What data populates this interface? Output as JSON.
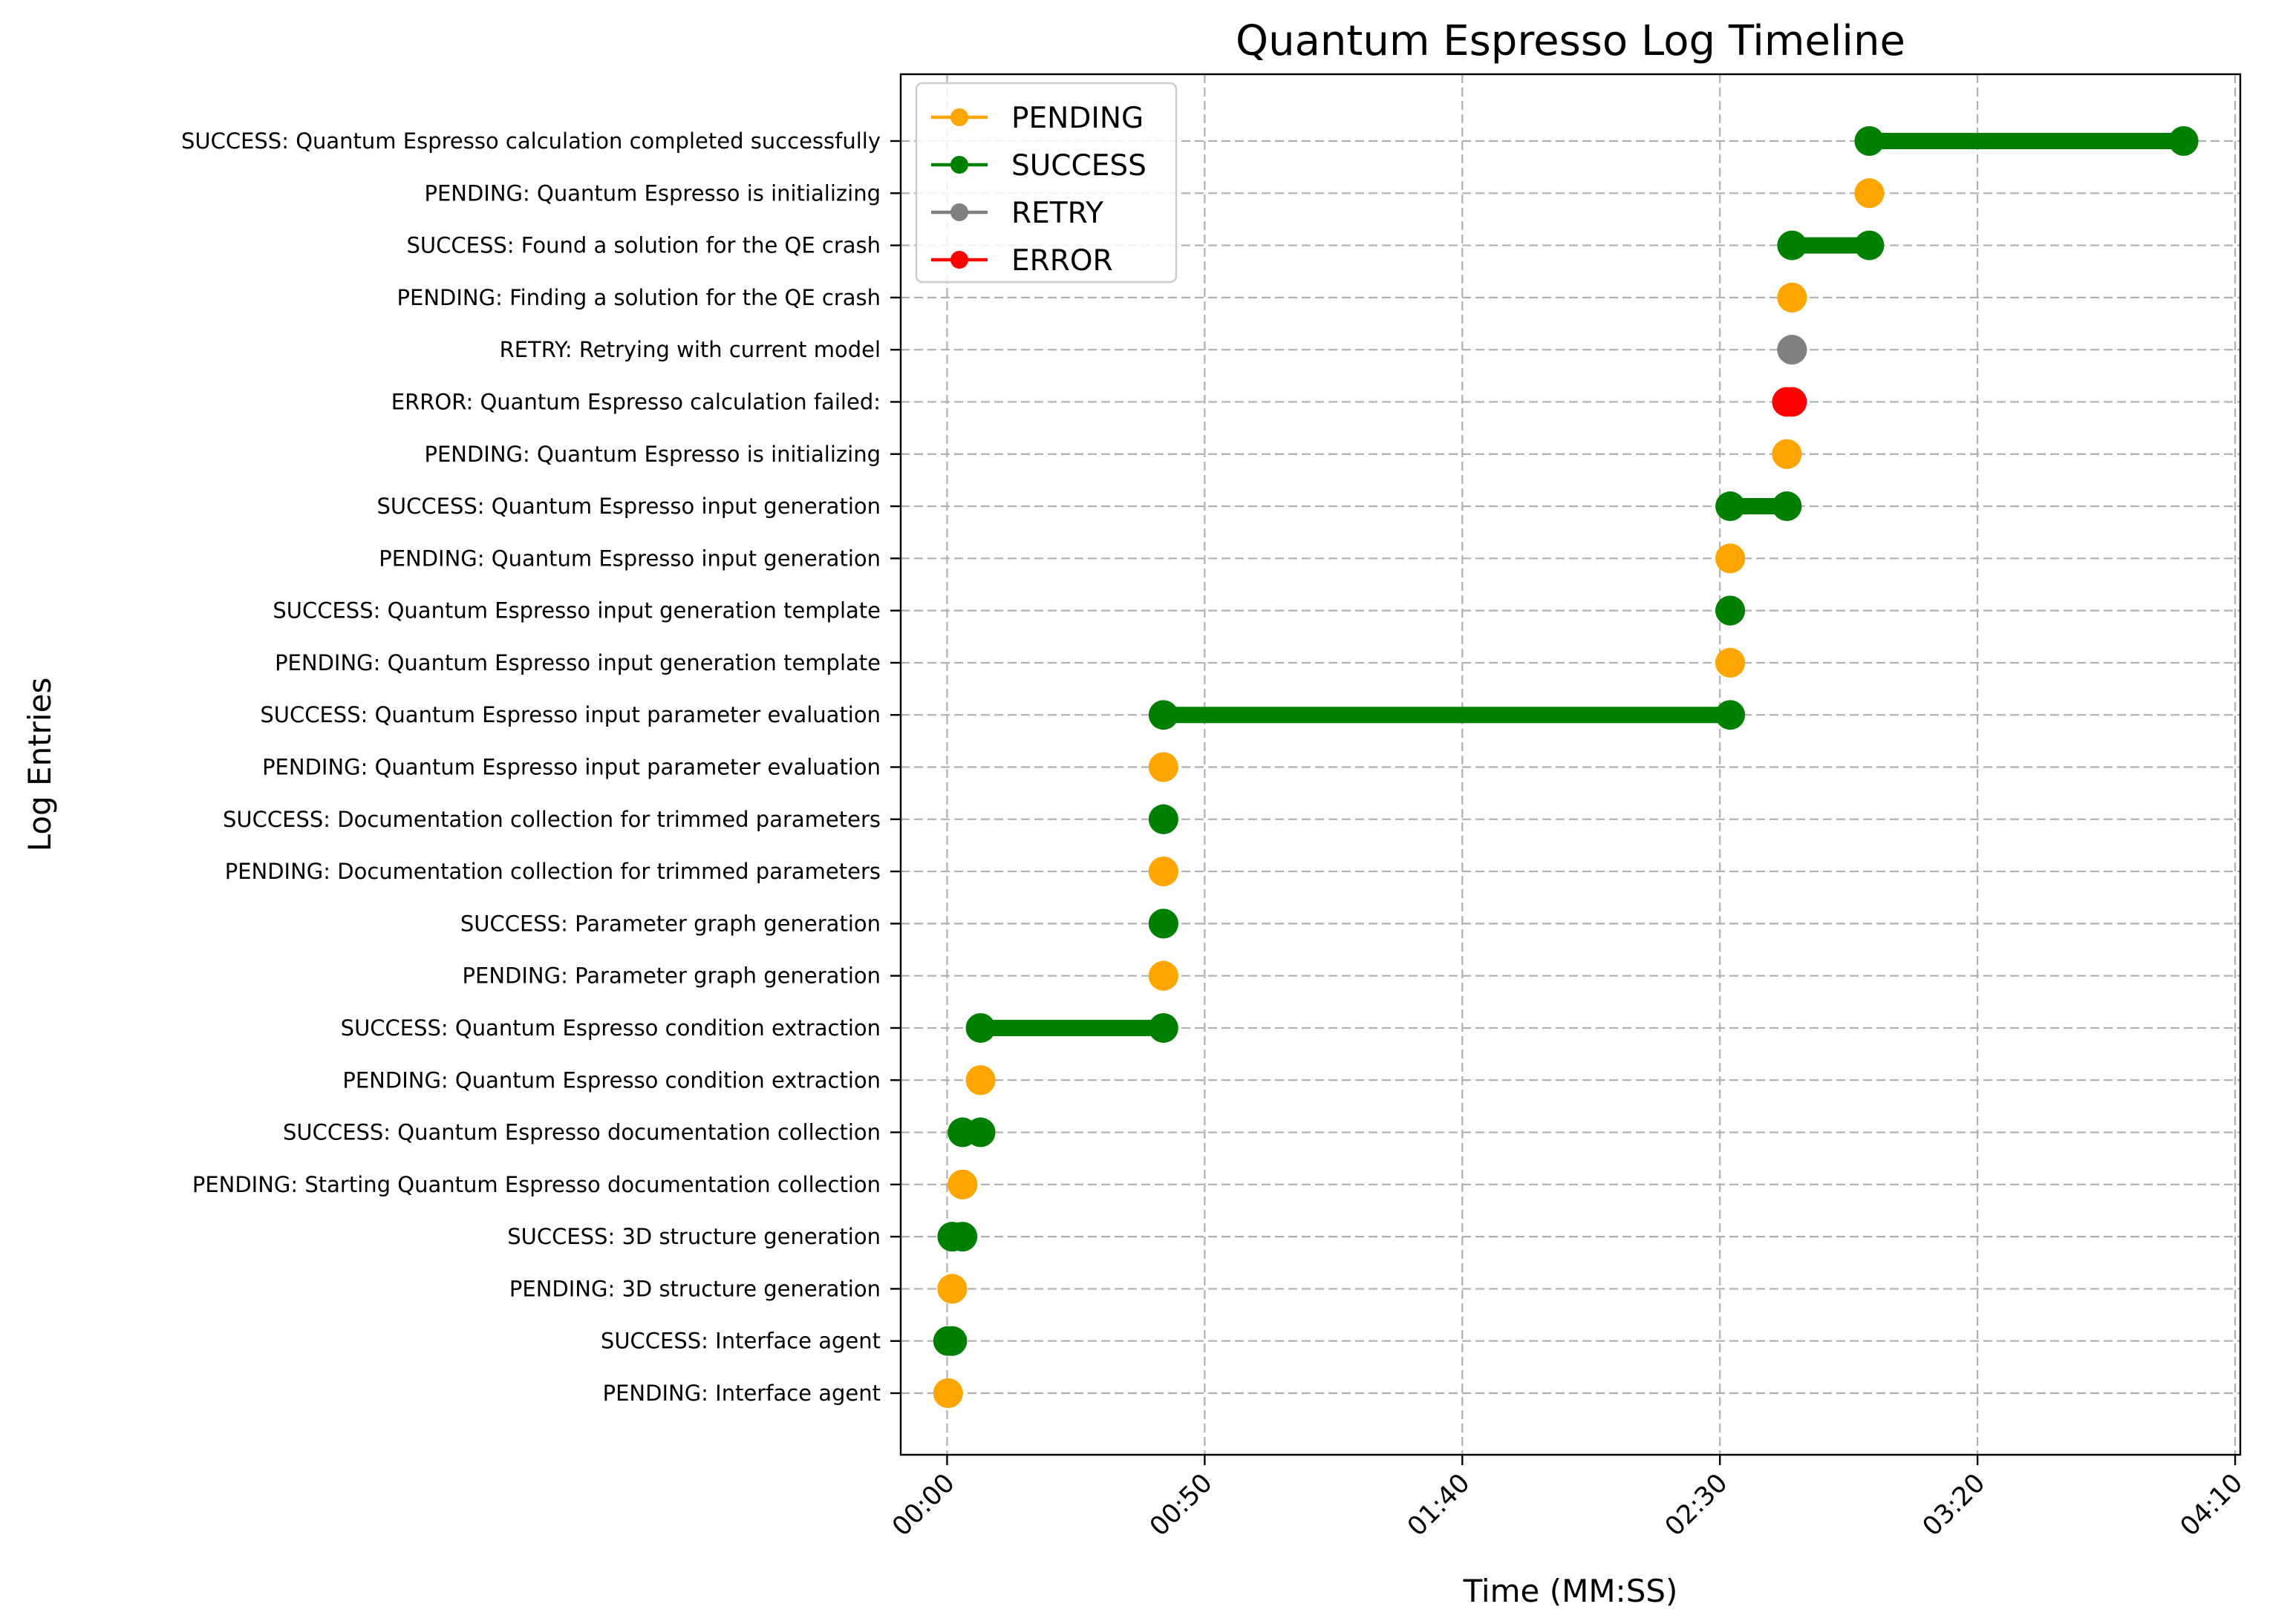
{
  "chart_data": {
    "type": "timeline",
    "title": "Quantum Espresso Log Timeline",
    "xlabel": "Time (MM:SS)",
    "ylabel": "Log Entries",
    "x_unit": "seconds",
    "xlim": [
      -9,
      251
    ],
    "x_ticks": [
      {
        "value": 0,
        "label": "00:00"
      },
      {
        "value": 50,
        "label": "00:50"
      },
      {
        "value": 100,
        "label": "01:40"
      },
      {
        "value": 150,
        "label": "02:30"
      },
      {
        "value": 200,
        "label": "03:20"
      },
      {
        "value": 250,
        "label": "04:10"
      }
    ],
    "grid": true,
    "legend_placement": "top-left",
    "status_colors": {
      "PENDING": "#ffa500",
      "SUCCESS": "#008000",
      "RETRY": "#808080",
      "ERROR": "#ff0000"
    },
    "legend": [
      "PENDING",
      "SUCCESS",
      "RETRY",
      "ERROR"
    ],
    "entries": [
      {
        "label": "PENDING: Interface agent",
        "status": "PENDING",
        "start": 0.2,
        "end": 0.2
      },
      {
        "label": "SUCCESS: Interface agent",
        "status": "SUCCESS",
        "start": 0.2,
        "end": 1.0
      },
      {
        "label": "PENDING: 3D structure generation",
        "status": "PENDING",
        "start": 1.0,
        "end": 1.0
      },
      {
        "label": "SUCCESS: 3D structure generation",
        "status": "SUCCESS",
        "start": 1.0,
        "end": 3.0
      },
      {
        "label": "PENDING: Starting Quantum Espresso documentation collection",
        "status": "PENDING",
        "start": 3.0,
        "end": 3.0
      },
      {
        "label": "SUCCESS: Quantum Espresso documentation collection",
        "status": "SUCCESS",
        "start": 3.0,
        "end": 6.5
      },
      {
        "label": "PENDING: Quantum Espresso condition extraction",
        "status": "PENDING",
        "start": 6.5,
        "end": 6.5
      },
      {
        "label": "SUCCESS: Quantum Espresso condition extraction",
        "status": "SUCCESS",
        "start": 6.5,
        "end": 42.0
      },
      {
        "label": "PENDING: Parameter graph generation",
        "status": "PENDING",
        "start": 42.0,
        "end": 42.0
      },
      {
        "label": "SUCCESS: Parameter graph generation",
        "status": "SUCCESS",
        "start": 42.0,
        "end": 42.0
      },
      {
        "label": "PENDING: Documentation collection for trimmed parameters",
        "status": "PENDING",
        "start": 42.0,
        "end": 42.0
      },
      {
        "label": "SUCCESS: Documentation collection for trimmed parameters",
        "status": "SUCCESS",
        "start": 42.0,
        "end": 42.0
      },
      {
        "label": "PENDING: Quantum Espresso input parameter evaluation",
        "status": "PENDING",
        "start": 42.0,
        "end": 42.0
      },
      {
        "label": "SUCCESS: Quantum Espresso input parameter evaluation",
        "status": "SUCCESS",
        "start": 42.0,
        "end": 152.0
      },
      {
        "label": "PENDING: Quantum Espresso input generation template",
        "status": "PENDING",
        "start": 152.0,
        "end": 152.0
      },
      {
        "label": "SUCCESS: Quantum Espresso input generation template",
        "status": "SUCCESS",
        "start": 152.0,
        "end": 152.0
      },
      {
        "label": "PENDING: Quantum Espresso input generation",
        "status": "PENDING",
        "start": 152.0,
        "end": 152.0
      },
      {
        "label": "SUCCESS: Quantum Espresso input generation",
        "status": "SUCCESS",
        "start": 152.0,
        "end": 163.0
      },
      {
        "label": "PENDING: Quantum Espresso is initializing",
        "status": "PENDING",
        "start": 163.0,
        "end": 163.0
      },
      {
        "label": "ERROR: Quantum Espresso calculation failed: ",
        "status": "ERROR",
        "start": 163.0,
        "end": 164.0
      },
      {
        "label": "RETRY: Retrying with current model",
        "status": "RETRY",
        "start": 164.0,
        "end": 164.0
      },
      {
        "label": "PENDING: Finding a solution for the QE crash",
        "status": "PENDING",
        "start": 164.0,
        "end": 164.0
      },
      {
        "label": "SUCCESS: Found a solution for the QE crash",
        "status": "SUCCESS",
        "start": 164.0,
        "end": 179.0
      },
      {
        "label": "PENDING: Quantum Espresso is initializing",
        "status": "PENDING",
        "start": 179.0,
        "end": 179.0
      },
      {
        "label": "SUCCESS: Quantum Espresso calculation completed successfully",
        "status": "SUCCESS",
        "start": 179.0,
        "end": 240.0
      }
    ]
  }
}
